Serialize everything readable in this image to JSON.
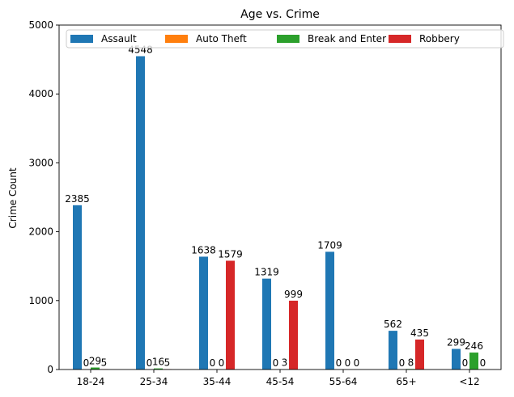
{
  "chart_data": {
    "type": "bar",
    "title": "Age vs. Crime",
    "xlabel": "",
    "ylabel": "Crime Count",
    "ylim": [
      0,
      5000
    ],
    "yticks": [
      0,
      1000,
      2000,
      3000,
      4000,
      5000
    ],
    "grid": false,
    "legend_position": "top",
    "categories": [
      "18-24",
      "25-34",
      "35-44",
      "45-54",
      "55-64",
      "65+",
      "<12"
    ],
    "series": [
      {
        "name": "Assault",
        "color": "#1f77b4",
        "values": [
          2385,
          4548,
          1638,
          1319,
          1709,
          562,
          299
        ]
      },
      {
        "name": "Auto Theft",
        "color": "#ff7f0e",
        "values": [
          0,
          0,
          0,
          0,
          0,
          0,
          0
        ]
      },
      {
        "name": "Break and Enter",
        "color": "#2ca02c",
        "values": [
          29,
          16,
          0,
          3,
          0,
          8,
          246
        ]
      },
      {
        "name": "Robbery",
        "color": "#d62728",
        "values": [
          5,
          5,
          1579,
          999,
          0,
          435,
          0
        ]
      }
    ]
  }
}
